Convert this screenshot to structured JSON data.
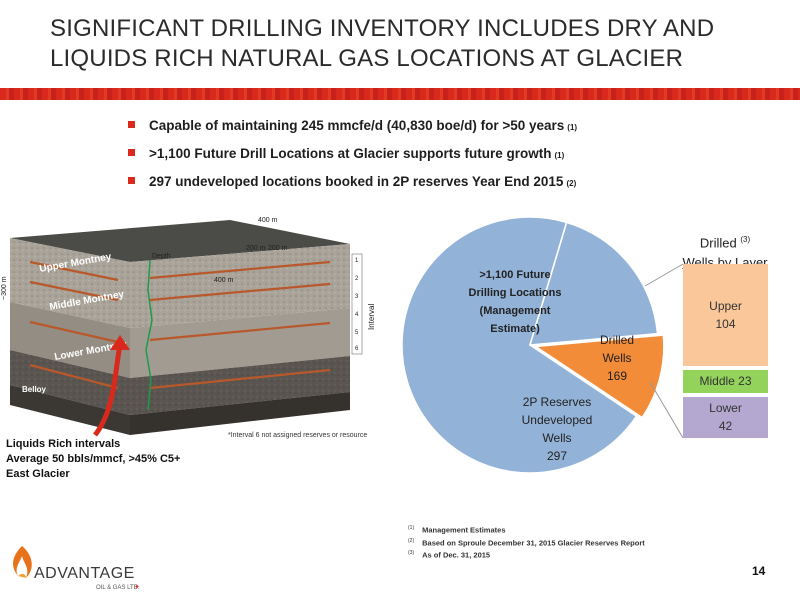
{
  "slide": {
    "title": "SIGNIFICANT DRILLING INVENTORY INCLUDES DRY AND LIQUIDS RICH NATURAL GAS LOCATIONS AT GLACIER",
    "page_number": "14",
    "logo_text": "ADVANTAGE",
    "logo_subtext": "OIL & GAS LTD."
  },
  "bullets": [
    {
      "text": "Capable of maintaining 245 mmcfe/d (40,830 boe/d) for >50 years",
      "ref": "(1)"
    },
    {
      "text": ">1,100 Future Drill Locations at Glacier supports future growth",
      "ref": "(1)"
    },
    {
      "text": "297 undeveloped locations booked in 2P reserves Year End 2015",
      "ref": "(2)"
    }
  ],
  "diagram": {
    "layer_labels": [
      "Upper Montney",
      "Middle Montney",
      "Lower Montney",
      "Belloy"
    ],
    "dimensions": [
      "400 m",
      "200 m",
      "200 m",
      "400 m",
      "~300 m",
      "Depth",
      "Interval"
    ],
    "interval_numbers": [
      "1",
      "2",
      "3",
      "4",
      "5",
      "6"
    ],
    "note": "*Interval 6 not assigned reserves or resource",
    "callout_lines": [
      "Liquids Rich intervals",
      "Average 50 bbls/mmcf, >45% C5+",
      "East Glacier"
    ]
  },
  "chart_data": [
    {
      "type": "pie",
      "slices": [
        {
          "label": ">1,100 Future Drilling Locations (Management Estimate)",
          "value": 1100,
          "color": "#93b2d8"
        },
        {
          "label": "2P Reserves Undeveloped Wells",
          "value": 297,
          "color": "#93b2d8"
        },
        {
          "label": "Drilled Wells",
          "value": 169,
          "color": "#f28c38"
        }
      ],
      "labels": {
        "future": [
          ">1,100 Future",
          "Drilling Locations",
          "(Management",
          "Estimate)"
        ],
        "undeveloped": [
          "2P Reserves",
          "Undeveloped",
          "Wells",
          "297"
        ],
        "drilled": [
          "Drilled",
          "Wells",
          "169"
        ]
      }
    },
    {
      "type": "bar",
      "title_line1": "Drilled",
      "title_ref": "(3)",
      "title_line2": "Wells by Layer",
      "categories": [
        "Upper",
        "Middle",
        "Lower"
      ],
      "values": [
        104,
        23,
        42
      ],
      "colors": [
        "#f9c79a",
        "#93d35b",
        "#b4a8d0"
      ],
      "labels": [
        "Upper",
        "Middle 23",
        "Lower"
      ],
      "value_labels": [
        "104",
        "",
        "42"
      ]
    }
  ],
  "footnotes": [
    {
      "ref": "(1)",
      "text": "Management Estimates"
    },
    {
      "ref": "(2)",
      "text": "Based on Sproule December 31, 2015 Glacier Reserves Report"
    },
    {
      "ref": "(3)",
      "text": "As of Dec. 31, 2015"
    }
  ]
}
